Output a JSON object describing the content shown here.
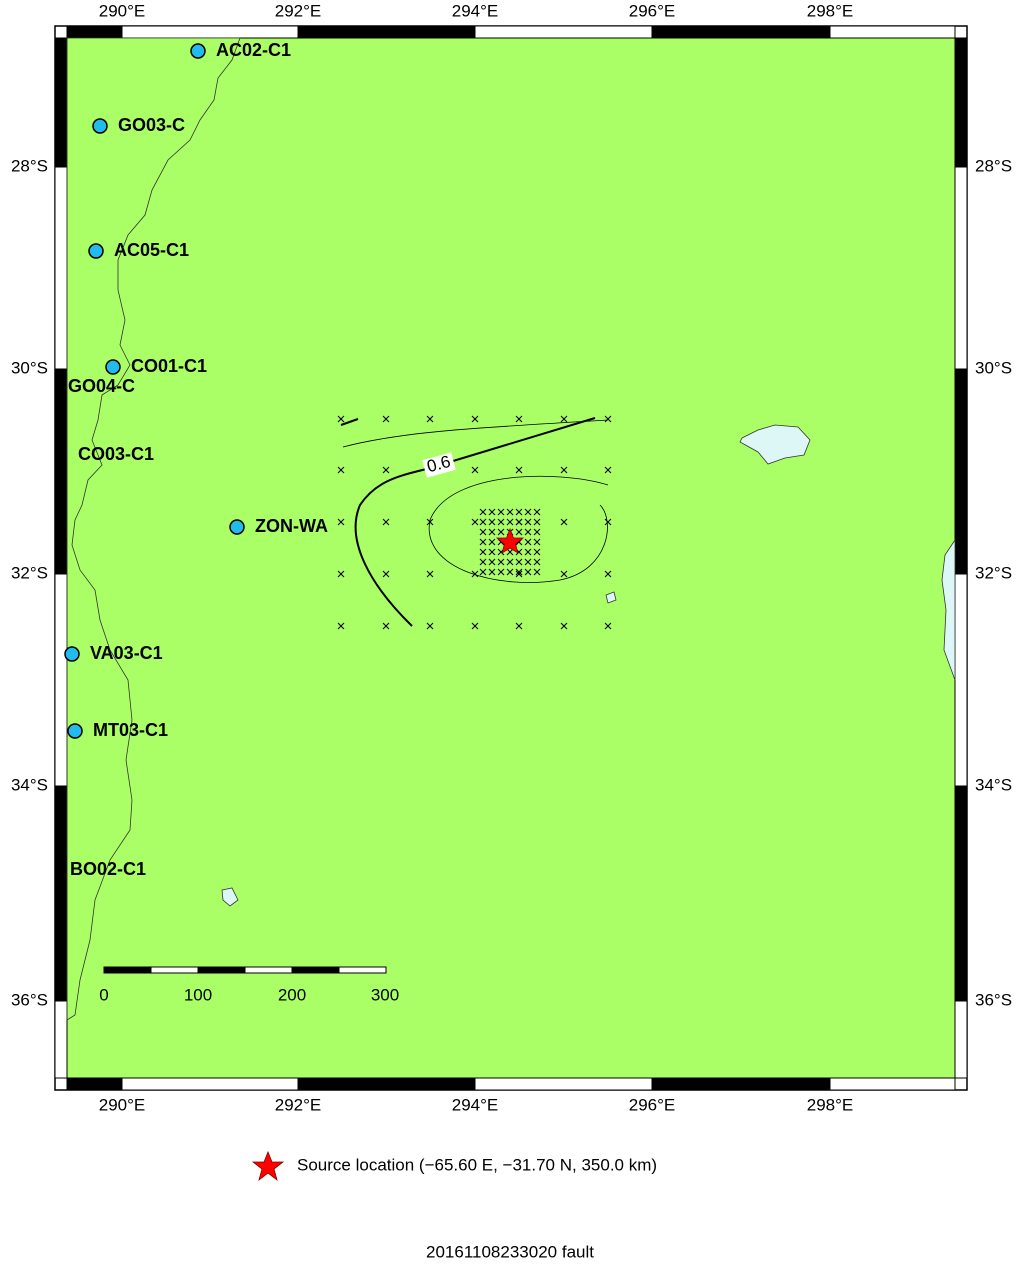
{
  "map": {
    "lon_ticks": [
      "290°E",
      "292°E",
      "294°E",
      "296°E",
      "298°E"
    ],
    "lat_ticks": [
      "28°S",
      "30°S",
      "32°S",
      "34°S",
      "36°S"
    ],
    "stations": [
      "AC02-C1",
      "GO03-C",
      "AC05-C1",
      "CO01-C1",
      "GO04-C",
      "CO03-C1",
      "ZON-WA",
      "VA03-C1",
      "MT03-C1",
      "BO02-C1"
    ],
    "contour_label": "0.6",
    "scale_labels": [
      "0",
      "100",
      "200",
      "300"
    ]
  },
  "legend": "Source location (−65.60 E, −31.70 N, 350.0 km)",
  "title": "20161108233020 fault"
}
